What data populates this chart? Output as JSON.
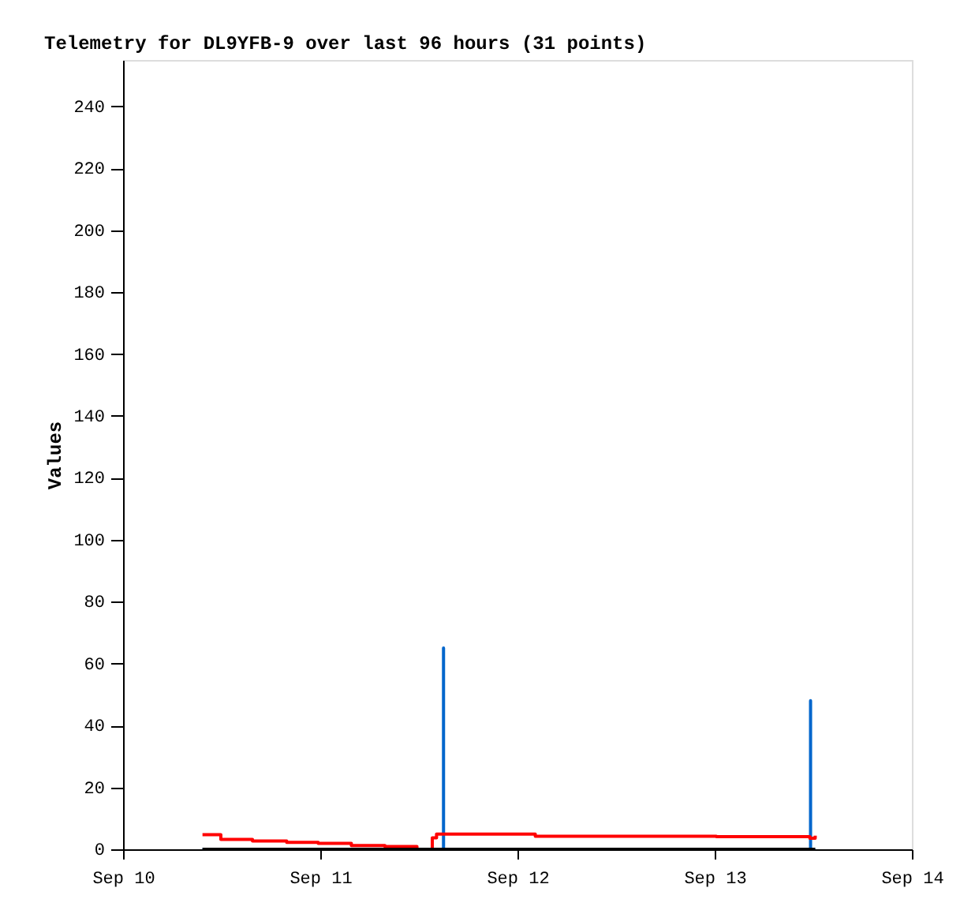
{
  "chart_data": {
    "type": "line",
    "title": "Telemetry for DL9YFB-9 over last 96 hours (31 points)",
    "ylabel": "Values",
    "series": [
      {
        "color": "#0066cc",
        "x": [
          "--09-10T09:40",
          "--09-11T15:00",
          "--09-11T15:00",
          "--09-11T15:00",
          "--09-13T11:40",
          "--09-13T11:40",
          "--09-13T11:40",
          "--09-13T12:14"
        ],
        "values": [
          0,
          0,
          65,
          0,
          0,
          48,
          0,
          0
        ]
      },
      {
        "type": "step",
        "color": "#ff0000",
        "x": [
          "--09-10T09:40",
          "--09-10T11:54",
          "--09-10T15:45",
          "--09-10T19:55",
          "--09-10T23:45",
          "--09-11T03:47",
          "--09-11T07:52",
          "--09-11T11:46",
          "--09-11T13:38",
          "--09-11T14:09",
          "--09-12T02:10",
          "--09-13T00:12",
          "--09-13T11:35",
          "--09-13T12:14"
        ],
        "values": [
          4.7,
          3.2,
          2.7,
          2.2,
          1.9,
          1.2,
          0.9,
          0,
          3.7,
          4.9,
          4.2,
          4.1,
          3.6,
          4.4
        ]
      },
      {
        "color": "#000000",
        "x": [
          "--09-10T09:40",
          "--09-13T12:14"
        ],
        "values": [
          0,
          0
        ]
      }
    ],
    "xlim": [
      "--09-10",
      "--09-14"
    ],
    "xticks": [
      {
        "value": "--09-10",
        "label": "Sep 10"
      },
      {
        "value": "--09-11",
        "label": "Sep 11"
      },
      {
        "value": "--09-12",
        "label": "Sep 12"
      },
      {
        "value": "--09-13",
        "label": "Sep 13"
      },
      {
        "value": "--09-14",
        "label": "Sep 14"
      }
    ],
    "ylim": [
      0,
      255
    ],
    "yticks": [
      0,
      20,
      40,
      60,
      80,
      100,
      120,
      140,
      160,
      180,
      200,
      220,
      240
    ],
    "grid": false,
    "legend": false,
    "marker": "none"
  }
}
